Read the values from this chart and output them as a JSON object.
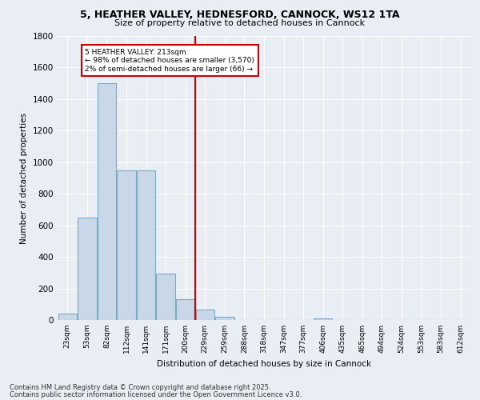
{
  "title_line1": "5, HEATHER VALLEY, HEDNESFORD, CANNOCK, WS12 1TA",
  "title_line2": "Size of property relative to detached houses in Cannock",
  "xlabel": "Distribution of detached houses by size in Cannock",
  "ylabel": "Number of detached properties",
  "bin_labels": [
    "23sqm",
    "53sqm",
    "82sqm",
    "112sqm",
    "141sqm",
    "171sqm",
    "200sqm",
    "229sqm",
    "259sqm",
    "288sqm",
    "318sqm",
    "347sqm",
    "377sqm",
    "406sqm",
    "435sqm",
    "465sqm",
    "494sqm",
    "524sqm",
    "553sqm",
    "583sqm",
    "612sqm"
  ],
  "bar_heights": [
    40,
    650,
    1500,
    950,
    950,
    295,
    130,
    65,
    22,
    0,
    0,
    0,
    0,
    12,
    0,
    0,
    0,
    0,
    0,
    0,
    0
  ],
  "bar_color": "#c8d8e8",
  "bar_edge_color": "#7aaac8",
  "ylim": [
    0,
    1800
  ],
  "yticks": [
    0,
    200,
    400,
    600,
    800,
    1000,
    1200,
    1400,
    1600,
    1800
  ],
  "vline_x": 6.5,
  "vline_color": "#cc0000",
  "annotation_title": "5 HEATHER VALLEY: 213sqm",
  "annotation_line1": "← 98% of detached houses are smaller (3,570)",
  "annotation_line2": "2% of semi-detached houses are larger (66) →",
  "annotation_box_color": "#cc0000",
  "background_color": "#e8eef4",
  "grid_color": "#ffffff",
  "footer_line1": "Contains HM Land Registry data © Crown copyright and database right 2025.",
  "footer_line2": "Contains public sector information licensed under the Open Government Licence v3.0."
}
